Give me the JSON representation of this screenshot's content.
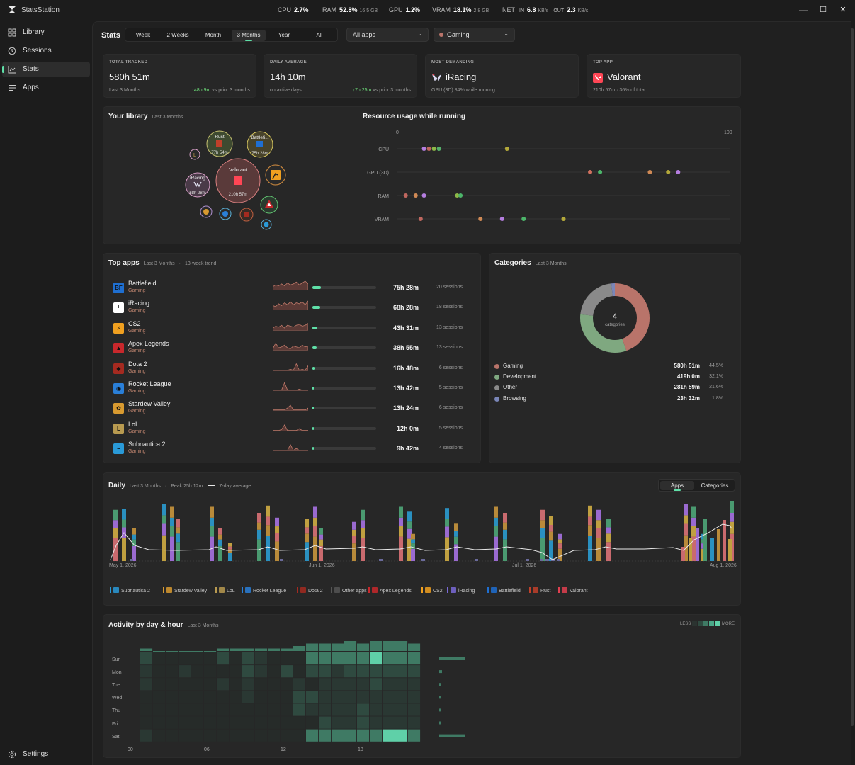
{
  "app": {
    "title": "StatsStation"
  },
  "system": {
    "cpu_label": "CPU",
    "cpu_value": "2.7%",
    "ram_label": "RAM",
    "ram_value": "52.8%",
    "ram_detail": "16.5 GB",
    "gpu_label": "GPU",
    "gpu_value": "1.2%",
    "vram_label": "VRAM",
    "vram_value": "18.1%",
    "vram_detail": "2.8 GB",
    "net_label": "NET",
    "in_label": "IN",
    "in_value": "6.8",
    "in_unit": "KB/s",
    "out_label": "OUT",
    "out_value": "2.3",
    "out_unit": "KB/s"
  },
  "window_controls": {
    "minimize": "—",
    "maximize": "☐",
    "close": "✕"
  },
  "sidebar": {
    "items": [
      {
        "label": "Library",
        "icon": "grid-icon"
      },
      {
        "label": "Sessions",
        "icon": "history-icon"
      },
      {
        "label": "Stats",
        "icon": "chart-icon"
      },
      {
        "label": "Apps",
        "icon": "list-icon"
      }
    ],
    "settings_label": "Settings"
  },
  "header": {
    "title": "Stats",
    "ranges": [
      "Week",
      "2 Weeks",
      "Month",
      "3 Months",
      "Year",
      "All"
    ],
    "active_range": "3 Months",
    "app_filter": "All apps",
    "category_filter": "Gaming"
  },
  "kpis": [
    {
      "label": "TOTAL TRACKED",
      "value": "580h 51m",
      "sub": "Last 3 Months",
      "delta": "↑48h 9m",
      "delta_suffix": " vs prior 3 months"
    },
    {
      "label": "DAILY AVERAGE",
      "value": "14h 10m",
      "sub": "on active days",
      "delta": "↑7h 25m",
      "delta_suffix": " vs prior 3 months"
    },
    {
      "label": "MOST DEMANDING",
      "value": "iRacing",
      "sub": "GPU (3D) 84% while running"
    },
    {
      "label": "TOP APP",
      "value": "Valorant",
      "sub": "210h 57m · 36% of total"
    }
  ],
  "library": {
    "title": "Your library",
    "subtitle": "Last 3 Months",
    "bubbles": [
      {
        "name": "Valorant",
        "time": "210h 57m"
      },
      {
        "name": "Rust",
        "time": "77h 54m"
      },
      {
        "name": "Battlefi...",
        "time": "75h 28m"
      },
      {
        "name": "iRacing",
        "time": "68h 28m"
      }
    ]
  },
  "resource_usage": {
    "title": "Resource usage while running",
    "scale_min": "0",
    "scale_max": "100",
    "rows": [
      {
        "label": "CPU",
        "points": [
          {
            "v": 8,
            "c": "#b57ee0"
          },
          {
            "v": 9.5,
            "c": "#c0675f"
          },
          {
            "v": 11,
            "c": "#8db847"
          },
          {
            "v": 12.5,
            "c": "#55b06a"
          },
          {
            "v": 33,
            "c": "#b3a83a"
          }
        ]
      },
      {
        "label": "GPU (3D)",
        "points": [
          {
            "v": 58,
            "c": "#d0705e"
          },
          {
            "v": 61,
            "c": "#4cb56a"
          },
          {
            "v": 76,
            "c": "#d08a55"
          },
          {
            "v": 81.5,
            "c": "#b3a83a"
          },
          {
            "v": 84.5,
            "c": "#b57ee0"
          }
        ]
      },
      {
        "label": "RAM",
        "points": [
          {
            "v": 2.5,
            "c": "#c0675f"
          },
          {
            "v": 5.5,
            "c": "#d08a55"
          },
          {
            "v": 8,
            "c": "#b57ee0"
          },
          {
            "v": 18,
            "c": "#8db847"
          },
          {
            "v": 19,
            "c": "#4cb56a"
          }
        ]
      },
      {
        "label": "VRAM",
        "points": [
          {
            "v": 7,
            "c": "#c0675f"
          },
          {
            "v": 25,
            "c": "#d08a55"
          },
          {
            "v": 31.5,
            "c": "#b57ee0"
          },
          {
            "v": 38,
            "c": "#4cb56a"
          },
          {
            "v": 50,
            "c": "#b3a83a"
          }
        ]
      }
    ]
  },
  "top_apps": {
    "title": "Top apps",
    "subtitle": "Last 3 Months",
    "trend_label": "13-week trend",
    "rows": [
      {
        "name": "Battlefield",
        "category": "Gaming",
        "duration": "75h 28m",
        "sessions": "20 sessions",
        "share": 0.13,
        "icon": "battlefield-icon",
        "color": "#1f6fd1",
        "glyph": "BF"
      },
      {
        "name": "iRacing",
        "category": "Gaming",
        "duration": "68h 28m",
        "sessions": "18 sessions",
        "share": 0.12,
        "icon": "iracing-icon",
        "color": "#ffffff",
        "glyph": "ᴵ"
      },
      {
        "name": "CS2",
        "category": "Gaming",
        "duration": "43h 31m",
        "sessions": "13 sessions",
        "share": 0.08,
        "icon": "cs2-icon",
        "color": "#f0a020",
        "glyph": "⚡"
      },
      {
        "name": "Apex Legends",
        "category": "Gaming",
        "duration": "38h 55m",
        "sessions": "13 sessions",
        "share": 0.07,
        "icon": "apex-icon",
        "color": "#c8282c",
        "glyph": "▲"
      },
      {
        "name": "Dota 2",
        "category": "Gaming",
        "duration": "16h 48m",
        "sessions": "6 sessions",
        "share": 0.03,
        "icon": "dota-icon",
        "color": "#a52a20",
        "glyph": "◆"
      },
      {
        "name": "Rocket League",
        "category": "Gaming",
        "duration": "13h 42m",
        "sessions": "5 sessions",
        "share": 0.025,
        "icon": "rocket-league-icon",
        "color": "#2a7fd8",
        "glyph": "◉"
      },
      {
        "name": "Stardew Valley",
        "category": "Gaming",
        "duration": "13h 24m",
        "sessions": "6 sessions",
        "share": 0.025,
        "icon": "stardew-icon",
        "color": "#d89a30",
        "glyph": "✿"
      },
      {
        "name": "LoL",
        "category": "Gaming",
        "duration": "12h 0m",
        "sessions": "5 sessions",
        "share": 0.02,
        "icon": "lol-icon",
        "color": "#b89a50",
        "glyph": "L"
      },
      {
        "name": "Subnautica 2",
        "category": "Gaming",
        "duration": "9h 42m",
        "sessions": "4 sessions",
        "share": 0.017,
        "icon": "subnautica-icon",
        "color": "#2a9ad8",
        "glyph": "~"
      }
    ]
  },
  "categories": {
    "title": "Categories",
    "subtitle": "Last 3 Months",
    "center_value": "4",
    "center_label": "categories",
    "rows": [
      {
        "name": "Gaming",
        "value": "580h 51m",
        "pct": "44.5%",
        "share": 0.445,
        "color": "#b9746a"
      },
      {
        "name": "Development",
        "value": "419h 0m",
        "pct": "32.1%",
        "share": 0.321,
        "color": "#7fa880"
      },
      {
        "name": "Other",
        "value": "281h 59m",
        "pct": "21.6%",
        "share": 0.216,
        "color": "#8a8a8a"
      },
      {
        "name": "Browsing",
        "value": "23h 32m",
        "pct": "1.8%",
        "share": 0.018,
        "color": "#7a86b8"
      }
    ]
  },
  "daily": {
    "title": "Daily",
    "subtitle": "Last 3 Months",
    "peak": "Peak 25h 12m",
    "avg_label": "7-day average",
    "toggle": [
      "Apps",
      "Categories"
    ],
    "active_toggle": "Apps",
    "date_labels": [
      "May 1, 2026",
      "Jun 1, 2026",
      "Jul 1, 2026",
      "Aug 1, 2026"
    ],
    "legend": [
      {
        "name": "Subnautica 2",
        "color": "#2a9ad8"
      },
      {
        "name": "Stardew Valley",
        "color": "#d89a30"
      },
      {
        "name": "LoL",
        "color": "#b89a50"
      },
      {
        "name": "Rocket League",
        "color": "#2a7fd8"
      },
      {
        "name": "Dota 2",
        "color": "#a52a20"
      },
      {
        "name": "Other apps",
        "color": "#555555"
      },
      {
        "name": "Apex Legends",
        "color": "#c8282c"
      },
      {
        "name": "CS2",
        "color": "#f0a020"
      },
      {
        "name": "iRacing",
        "color": "#7a6ad8"
      },
      {
        "name": "Battlefield",
        "color": "#1f6fd1"
      },
      {
        "name": "Rust",
        "color": "#c0402a"
      },
      {
        "name": "Valorant",
        "color": "#e04050"
      }
    ]
  },
  "activity": {
    "title": "Activity by day & hour",
    "subtitle": "Last 3 Months",
    "less": "LESS",
    "more": "MORE",
    "days": [
      "Sun",
      "Mon",
      "Tue",
      "Wed",
      "Thu",
      "Fri",
      "Sat"
    ],
    "hours": [
      "00",
      "06",
      "12",
      "18"
    ],
    "grid": [
      [
        2,
        0,
        0,
        0,
        0,
        0,
        2,
        0,
        2,
        1,
        0,
        0,
        0,
        3,
        3,
        3,
        3,
        3,
        4,
        3,
        3,
        3,
        0
      ],
      [
        1,
        0,
        0,
        1,
        0,
        0,
        0,
        0,
        2,
        1,
        0,
        2,
        0,
        2,
        2,
        1,
        2,
        2,
        2,
        2,
        2,
        2,
        0
      ],
      [
        1,
        0,
        0,
        0,
        0,
        0,
        1,
        0,
        1,
        0,
        0,
        0,
        1,
        0,
        1,
        1,
        1,
        1,
        2,
        1,
        1,
        1,
        0
      ],
      [
        0,
        0,
        0,
        0,
        0,
        0,
        0,
        0,
        1,
        0,
        0,
        0,
        2,
        2,
        1,
        1,
        1,
        1,
        1,
        1,
        1,
        1,
        0
      ],
      [
        0,
        0,
        0,
        0,
        0,
        0,
        0,
        0,
        0,
        0,
        0,
        0,
        2,
        1,
        1,
        1,
        1,
        2,
        1,
        1,
        1,
        1,
        0
      ],
      [
        0,
        0,
        0,
        0,
        0,
        0,
        0,
        0,
        0,
        0,
        0,
        0,
        0,
        0,
        2,
        1,
        1,
        2,
        1,
        1,
        1,
        1,
        0
      ],
      [
        1,
        0,
        0,
        0,
        0,
        0,
        0,
        0,
        0,
        0,
        0,
        0,
        0,
        3,
        3,
        3,
        3,
        3,
        3,
        4,
        4,
        3,
        0
      ]
    ]
  }
}
